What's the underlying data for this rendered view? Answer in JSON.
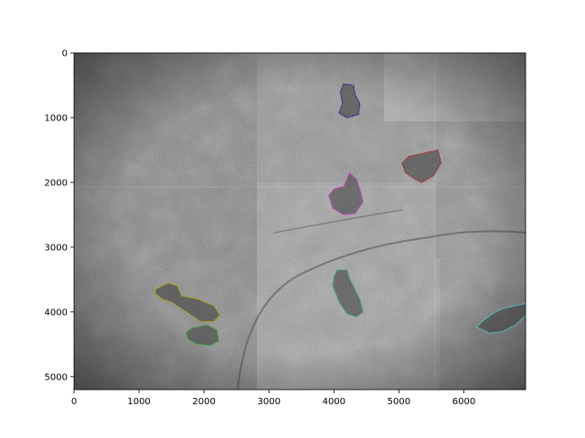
{
  "chart_data": {
    "type": "image",
    "title": "",
    "xlabel": "",
    "ylabel": "",
    "xlim": [
      0,
      6950
    ],
    "ylim": [
      5200,
      0
    ],
    "x_ticks": [
      0,
      1000,
      2000,
      3000,
      4000,
      5000,
      6000
    ],
    "y_ticks": [
      0,
      1000,
      2000,
      3000,
      4000,
      5000
    ],
    "grid": false,
    "background": "grayscale microscopy mosaic with tiled seams",
    "regions": [
      {
        "id": "navy-region",
        "color": "#1f1f8f",
        "outline": [
          [
            4150,
            480
          ],
          [
            4300,
            500
          ],
          [
            4330,
            650
          ],
          [
            4400,
            780
          ],
          [
            4380,
            950
          ],
          [
            4200,
            1000
          ],
          [
            4080,
            930
          ],
          [
            4130,
            780
          ],
          [
            4100,
            600
          ]
        ]
      },
      {
        "id": "darkred-region",
        "color": "#b02020",
        "outline": [
          [
            5150,
            1600
          ],
          [
            5380,
            1550
          ],
          [
            5600,
            1500
          ],
          [
            5650,
            1700
          ],
          [
            5530,
            1900
          ],
          [
            5350,
            2000
          ],
          [
            5250,
            1950
          ],
          [
            5100,
            1850
          ],
          [
            5050,
            1700
          ]
        ]
      },
      {
        "id": "magenta-region",
        "color": "#e040d0",
        "outline": [
          [
            4240,
            1850
          ],
          [
            4350,
            1950
          ],
          [
            4400,
            2100
          ],
          [
            4450,
            2300
          ],
          [
            4330,
            2480
          ],
          [
            4150,
            2500
          ],
          [
            3980,
            2400
          ],
          [
            3920,
            2200
          ],
          [
            4000,
            2100
          ],
          [
            4150,
            2060
          ],
          [
            4200,
            1950
          ]
        ]
      },
      {
        "id": "olive-region",
        "color": "#b8b400",
        "outline": [
          [
            1250,
            3650
          ],
          [
            1450,
            3550
          ],
          [
            1600,
            3600
          ],
          [
            1650,
            3750
          ],
          [
            1900,
            3800
          ],
          [
            2150,
            3900
          ],
          [
            2250,
            4050
          ],
          [
            2150,
            4150
          ],
          [
            1950,
            4150
          ],
          [
            1800,
            4050
          ],
          [
            1650,
            3950
          ],
          [
            1500,
            3850
          ],
          [
            1350,
            3800
          ],
          [
            1250,
            3720
          ]
        ]
      },
      {
        "id": "green-region",
        "color": "#40b040",
        "outline": [
          [
            1800,
            4250
          ],
          [
            2050,
            4200
          ],
          [
            2200,
            4280
          ],
          [
            2230,
            4450
          ],
          [
            2100,
            4520
          ],
          [
            1900,
            4500
          ],
          [
            1750,
            4420
          ],
          [
            1720,
            4320
          ]
        ]
      },
      {
        "id": "teal-region",
        "color": "#40b0a8",
        "outline": [
          [
            4050,
            3350
          ],
          [
            4200,
            3350
          ],
          [
            4250,
            3500
          ],
          [
            4300,
            3600
          ],
          [
            4400,
            3800
          ],
          [
            4450,
            4000
          ],
          [
            4350,
            4080
          ],
          [
            4200,
            4030
          ],
          [
            4080,
            3850
          ],
          [
            3980,
            3600
          ],
          [
            4000,
            3450
          ]
        ]
      },
      {
        "id": "cyan-region",
        "color": "#50d0d8",
        "outline": [
          [
            6950,
            3870
          ],
          [
            6950,
            4050
          ],
          [
            6800,
            4200
          ],
          [
            6600,
            4300
          ],
          [
            6400,
            4330
          ],
          [
            6200,
            4230
          ],
          [
            6300,
            4130
          ],
          [
            6450,
            4020
          ],
          [
            6600,
            3950
          ],
          [
            6800,
            3900
          ]
        ]
      }
    ]
  }
}
